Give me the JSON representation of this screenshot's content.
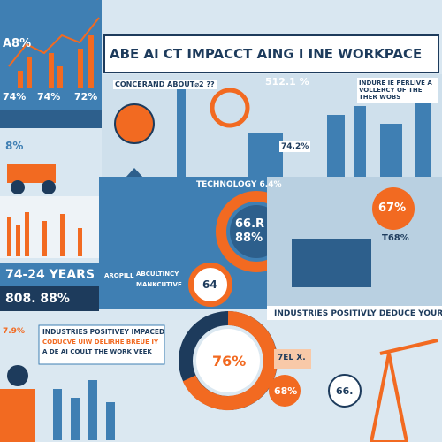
{
  "header": {
    "title": "ABE AI CT IMPACCT AING I INE WORKPACE"
  },
  "top_left": {
    "headline": "A8%",
    "stats": [
      "74%",
      "74%",
      "72%"
    ]
  },
  "top_middle": {
    "concern": "CONCERAND ABOUT⌀2 ??",
    "stat": "512.1 %",
    "small_stat": "74.2%",
    "note": "INDURE IE PERLIVE A VOLLERCY OF THE THER WOBS"
  },
  "left_stat": "8%",
  "technology": "TECHNOLOGY 6.4%",
  "big_donut": [
    "66.R",
    "88%"
  ],
  "right_stats": [
    "67%",
    "T68%"
  ],
  "years": {
    "label": "74-24 YEARS",
    "value": "808. 88%"
  },
  "sectors": [
    "AROPILL",
    "ABCULTINCY",
    "MANKCUTIVE"
  ],
  "gauge": "64",
  "banner": "INDUSTRIES POSITIVLY DEDUCE YOUR JOB",
  "bottom": {
    "side_stat": "7.9%",
    "heading": "INDUSTRIES POSITIVEY IMPACED",
    "lines": [
      "CODUCVE UIW DELIRHE BREUE IY",
      "A DE AI COULT THE WORK VEEK"
    ],
    "donut": "76%",
    "stats": [
      "7EL X.",
      "68%",
      "66."
    ]
  }
}
